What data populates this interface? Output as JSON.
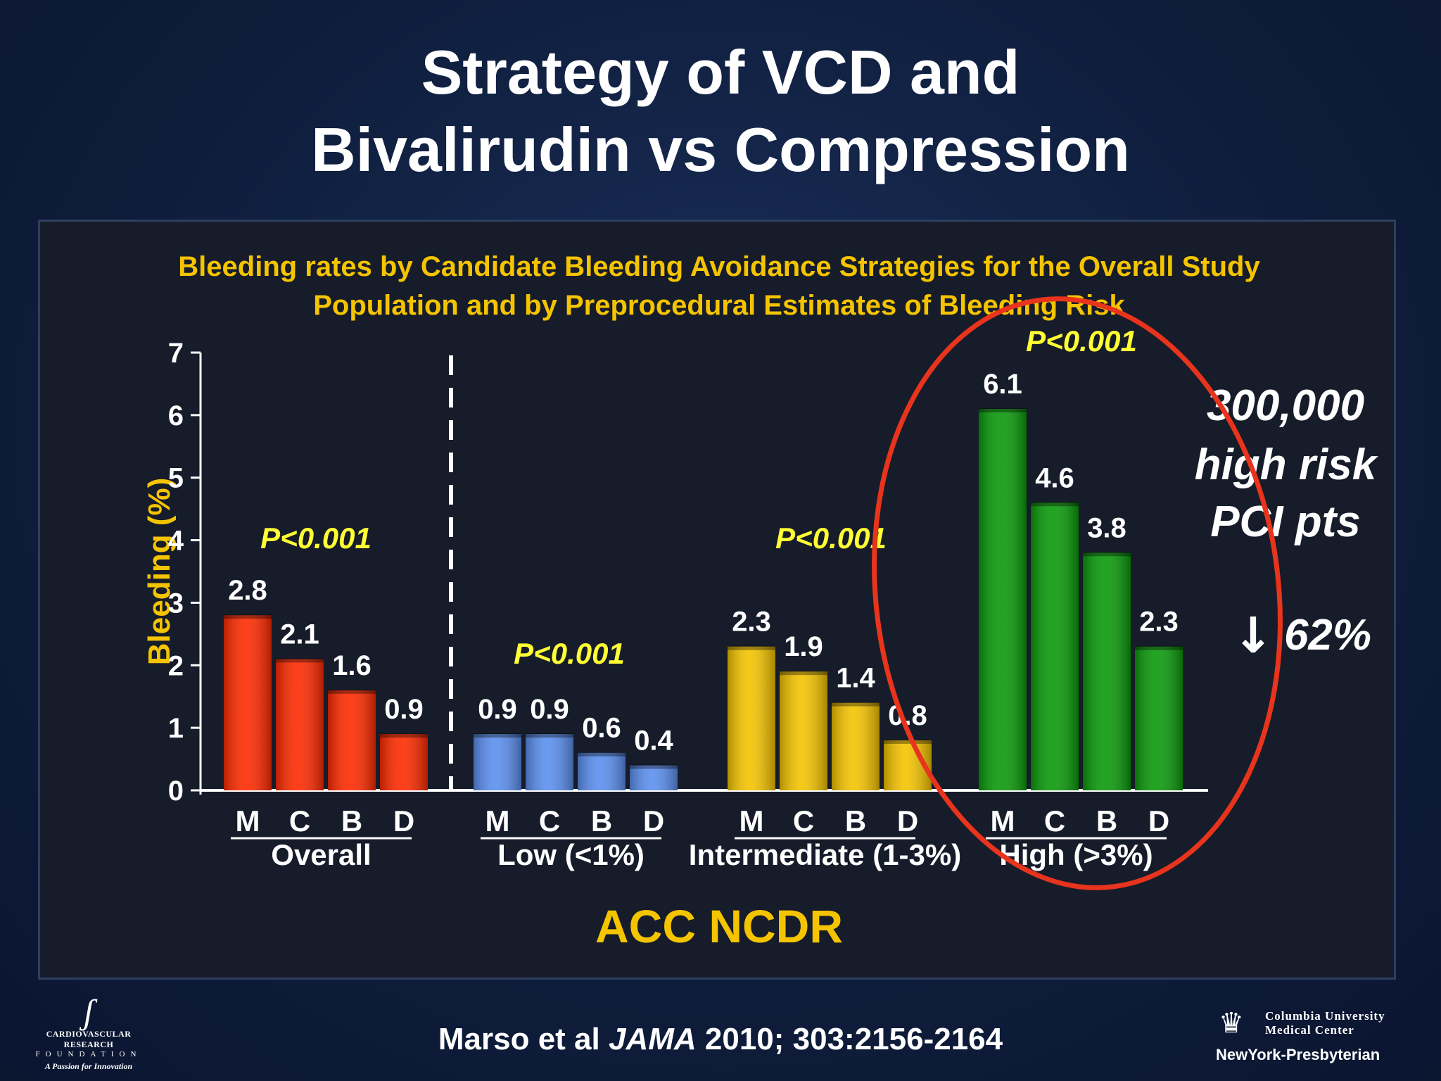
{
  "slide": {
    "title_line1": "Strategy of VCD and",
    "title_line2": "Bivalirudin vs Compression",
    "citation_pre": "Marso et al ",
    "citation_journal": "JAMA",
    "citation_post": " 2010; 303:2156-2164",
    "logo_left": {
      "org_line1": "CARDIOVASCULAR RESEARCH",
      "org_line2": "FOUNDATION",
      "tagline": "A Passion for Innovation"
    },
    "logo_right": {
      "line1": "Columbia University",
      "line2": "Medical Center",
      "line3": "NewYork-Presbyterian"
    }
  },
  "chart_data": {
    "type": "bar",
    "title_line1": "Bleeding rates by Candidate Bleeding Avoidance Strategies for the Overall Study",
    "title_line2": "Population and by Preprocedural Estimates of Bleeding Risk",
    "ylabel": "Bleeding (%)",
    "ylim": [
      0,
      7
    ],
    "yticks": [
      "0",
      "1",
      "2",
      "3",
      "4",
      "5",
      "6",
      "7"
    ],
    "bar_labels": [
      "M",
      "C",
      "B",
      "D"
    ],
    "groups": [
      {
        "name": "Overall",
        "values": [
          2.8,
          2.1,
          1.6,
          0.9
        ],
        "labels": [
          "2.8",
          "2.1",
          "1.6",
          "0.9"
        ],
        "p": "P<0.001",
        "color": "#ff2a00"
      },
      {
        "name": "Low (<1%)",
        "values": [
          0.9,
          0.9,
          0.6,
          0.4
        ],
        "labels": [
          "0.9",
          "0.9",
          "0.6",
          "0.4"
        ],
        "p": "P<0.001",
        "color": "#5b8ff0"
      },
      {
        "name": "Intermediate (1-3%)",
        "values": [
          2.3,
          1.9,
          1.4,
          0.8
        ],
        "labels": [
          "2.3",
          "1.9",
          "1.4",
          "0.8"
        ],
        "p": "P<0.001",
        "color": "#f5c400"
      },
      {
        "name": "High (>3%)",
        "values": [
          6.1,
          4.6,
          3.8,
          2.3
        ],
        "labels": [
          "6.1",
          "4.6",
          "3.8",
          "2.3"
        ],
        "p": "P<0.001",
        "color": "#0a9a0a"
      }
    ],
    "annotation_lines": [
      "300,000",
      "high risk",
      "PCI pts"
    ],
    "reduction_arrow": "↓",
    "reduction": "62%",
    "source": "ACC NCDR",
    "colors": {
      "title": "#f5c400",
      "pvalue": "#ffff33",
      "axis": "#ffffff",
      "highlight": "#e8341c"
    }
  }
}
